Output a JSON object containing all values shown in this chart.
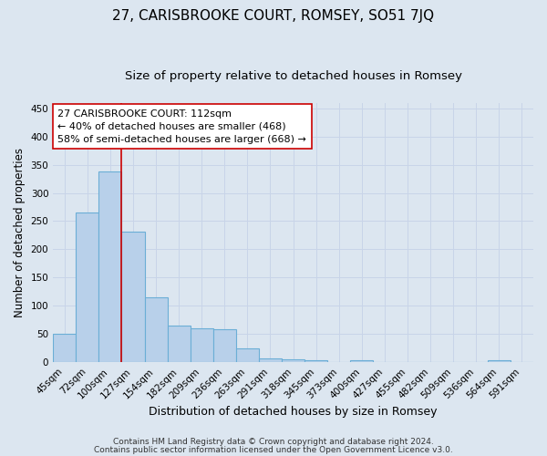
{
  "title": "27, CARISBROOKE COURT, ROMSEY, SO51 7JQ",
  "subtitle": "Size of property relative to detached houses in Romsey",
  "xlabel": "Distribution of detached houses by size in Romsey",
  "ylabel": "Number of detached properties",
  "bar_labels": [
    "45sqm",
    "72sqm",
    "100sqm",
    "127sqm",
    "154sqm",
    "182sqm",
    "209sqm",
    "236sqm",
    "263sqm",
    "291sqm",
    "318sqm",
    "345sqm",
    "373sqm",
    "400sqm",
    "427sqm",
    "455sqm",
    "482sqm",
    "509sqm",
    "536sqm",
    "564sqm",
    "591sqm"
  ],
  "bar_values": [
    50,
    265,
    338,
    232,
    115,
    65,
    60,
    58,
    25,
    7,
    6,
    4,
    0,
    4,
    0,
    0,
    0,
    0,
    0,
    4,
    0
  ],
  "bar_color": "#b8d0ea",
  "bar_edge_color": "#6baed6",
  "bar_edge_width": 0.8,
  "grid_color": "#c8d4e8",
  "background_color": "#dce6f0",
  "red_line_index": 2,
  "red_line_color": "#cc0000",
  "annotation_text": "27 CARISBROOKE COURT: 112sqm\n← 40% of detached houses are smaller (468)\n58% of semi-detached houses are larger (668) →",
  "annotation_box_color": "white",
  "annotation_box_edge": "#cc0000",
  "footnote1": "Contains HM Land Registry data © Crown copyright and database right 2024.",
  "footnote2": "Contains public sector information licensed under the Open Government Licence v3.0.",
  "ylim": [
    0,
    460
  ],
  "yticks": [
    0,
    50,
    100,
    150,
    200,
    250,
    300,
    350,
    400,
    450
  ],
  "title_fontsize": 11,
  "subtitle_fontsize": 9.5,
  "xlabel_fontsize": 9,
  "ylabel_fontsize": 8.5,
  "tick_fontsize": 7.5,
  "annotation_fontsize": 8,
  "footnote_fontsize": 6.5
}
